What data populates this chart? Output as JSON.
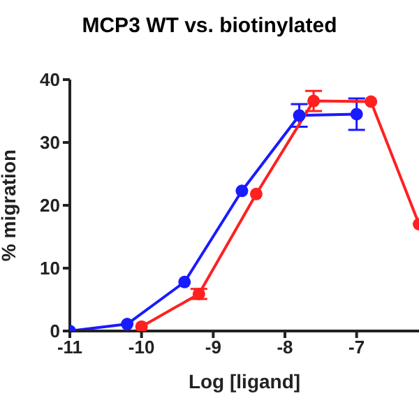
{
  "chart_data": {
    "type": "line",
    "title": "MCP3 WT vs. biotinylated",
    "xlabel": "Log [ligand]",
    "ylabel": "% migration",
    "xlim": [
      -11,
      -6.13
    ],
    "xticks": [
      -11,
      -10,
      -9,
      -8,
      -7
    ],
    "ylim": [
      0,
      40
    ],
    "yticks": [
      0,
      10,
      20,
      30,
      40
    ],
    "marker": "circle",
    "line_style": "solid",
    "series": [
      {
        "color": "#1a1aff",
        "x": [
          -11,
          -10.2,
          -9.4,
          -8.6,
          -7.8,
          -7
        ],
        "values": [
          0,
          1.1,
          7.8,
          22.3,
          34.3,
          34.5
        ],
        "errors": [
          null,
          null,
          null,
          null,
          1.8,
          2.5
        ]
      },
      {
        "color": "#ff2020",
        "x": [
          -10,
          -9.2,
          -8.4,
          -7.6,
          -6.8,
          -6.13
        ],
        "values": [
          0.7,
          5.9,
          21.8,
          36.6,
          36.5,
          17
        ],
        "errors": [
          null,
          0.8,
          null,
          1.6,
          null,
          null
        ]
      }
    ]
  }
}
